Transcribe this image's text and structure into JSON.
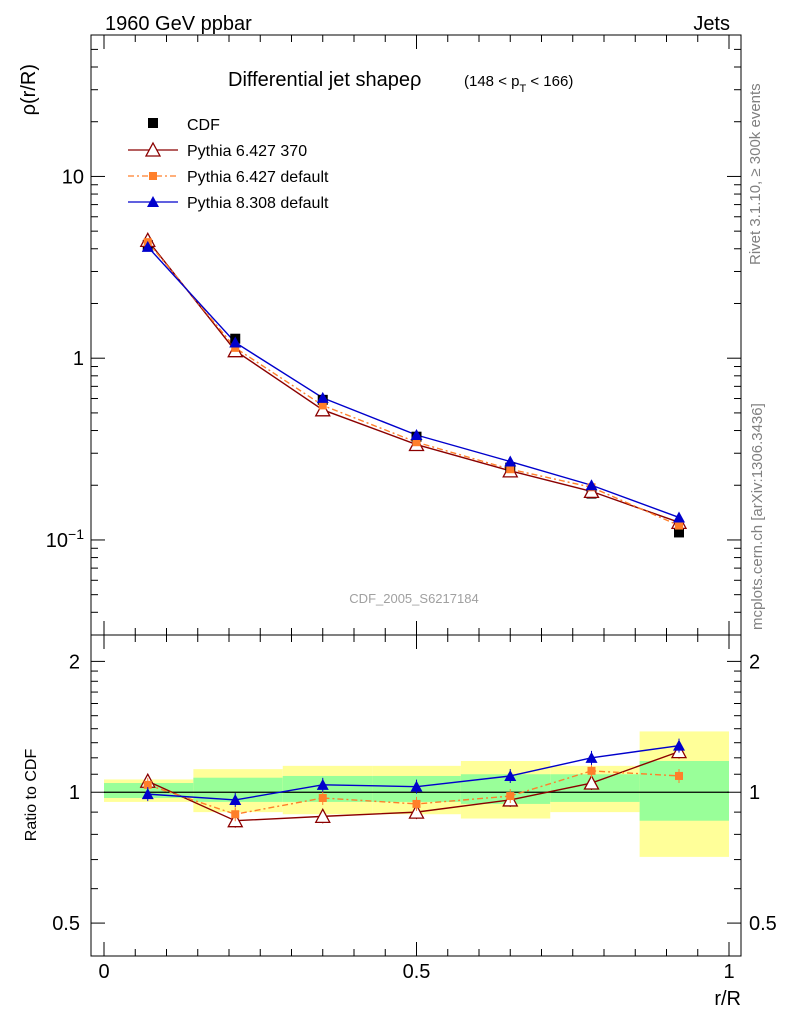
{
  "header": {
    "left": "1960 GeV ppbar",
    "right": "Jets"
  },
  "side": {
    "rivet": "Rivet 3.1.10, ≥ 300k events",
    "mcplots": "mcplots.cern.ch [arXiv:1306.3436]"
  },
  "title": {
    "main": "Differential jet shapeρ",
    "range_prefix": "(148 < p",
    "range_sub": "T",
    "range_suffix": " < 166)"
  },
  "watermark": "CDF_2005_S6217184",
  "colors": {
    "cdf": "#000000",
    "p6_370": "#8b0000",
    "p6_default": "#ff7f2a",
    "p8": "#0000cc",
    "band_yellow": "#ffff99",
    "band_green": "#99ff99"
  },
  "chart_data": [
    {
      "type": "line",
      "title": "Differential jet shapeρ (148 < p_T < 166)",
      "ylabel": "ρ(r/R)",
      "yscale": "log",
      "ylim": [
        0.03,
        60
      ],
      "xlim": [
        -0.02,
        1.02
      ],
      "ytick_labels": [
        "10",
        "1",
        "10−1"
      ],
      "ytick_values": [
        10,
        1,
        0.1
      ],
      "x": [
        0.07,
        0.21,
        0.35,
        0.5,
        0.65,
        0.78,
        0.92
      ],
      "series": [
        {
          "name": "CDF",
          "marker": "square",
          "values": [
            4.2,
            1.28,
            0.59,
            0.37,
            0.25,
            0.18,
            0.11
          ]
        },
        {
          "name": "Pythia 6.427 370",
          "marker": "open-triangle",
          "values": [
            4.45,
            1.1,
            0.52,
            0.335,
            0.24,
            0.185,
            0.125
          ]
        },
        {
          "name": "Pythia 6.427 default",
          "marker": "small-square",
          "values": [
            4.35,
            1.14,
            0.55,
            0.345,
            0.245,
            0.195,
            0.12
          ]
        },
        {
          "name": "Pythia 8.308 default",
          "marker": "filled-triangle",
          "values": [
            4.1,
            1.22,
            0.605,
            0.378,
            0.27,
            0.2,
            0.133
          ]
        }
      ]
    },
    {
      "type": "line",
      "ylabel": "Ratio to CDF",
      "xlabel": "r/R",
      "yscale": "log",
      "ylim": [
        0.42,
        2.3
      ],
      "xlim": [
        -0.02,
        1.02
      ],
      "ytick_labels": [
        "2",
        "1",
        "0.5"
      ],
      "ytick_values": [
        2,
        1,
        0.5
      ],
      "xtick_labels": [
        "0",
        "0.5",
        "1"
      ],
      "xtick_values": [
        0,
        0.5,
        1
      ],
      "x": [
        0.07,
        0.21,
        0.35,
        0.5,
        0.65,
        0.78,
        0.92
      ],
      "bin_edges": [
        0,
        0.143,
        0.286,
        0.429,
        0.571,
        0.714,
        0.857,
        1.0
      ],
      "band_yellow": [
        [
          0.95,
          1.07
        ],
        [
          0.9,
          1.13
        ],
        [
          0.89,
          1.15
        ],
        [
          0.89,
          1.15
        ],
        [
          0.87,
          1.18
        ],
        [
          0.9,
          1.15
        ],
        [
          0.71,
          1.38
        ]
      ],
      "band_green": [
        [
          0.97,
          1.05
        ],
        [
          0.95,
          1.08
        ],
        [
          0.95,
          1.09
        ],
        [
          0.95,
          1.09
        ],
        [
          0.94,
          1.1
        ],
        [
          0.95,
          1.1
        ],
        [
          0.86,
          1.18
        ]
      ],
      "series": [
        {
          "name": "Pythia 6.427 370",
          "values": [
            1.06,
            0.86,
            0.88,
            0.9,
            0.96,
            1.05,
            1.24
          ]
        },
        {
          "name": "Pythia 6.427 default",
          "values": [
            1.04,
            0.89,
            0.97,
            0.94,
            0.98,
            1.12,
            1.09
          ]
        },
        {
          "name": "Pythia 8.308 default",
          "values": [
            0.99,
            0.96,
            1.04,
            1.03,
            1.09,
            1.2,
            1.28
          ]
        }
      ]
    }
  ]
}
